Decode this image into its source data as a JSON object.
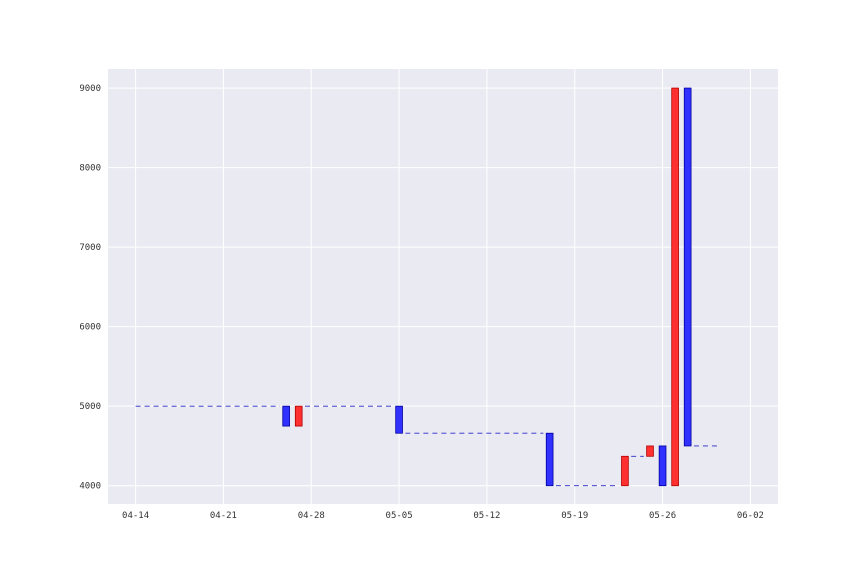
{
  "chart_data": {
    "type": "bar",
    "title": "",
    "xlabel": "",
    "ylabel": "",
    "ylim": [
      3770,
      9240
    ],
    "x_tick_labels": [
      "04-14",
      "04-21",
      "04-28",
      "05-05",
      "05-12",
      "05-19",
      "05-26",
      "06-02"
    ],
    "x_ticks_day_of_year": [
      104,
      111,
      118,
      125,
      132,
      139,
      146,
      153
    ],
    "xlim_day_of_year": [
      101.8,
      155.2
    ],
    "y_ticks": [
      4000,
      5000,
      6000,
      7000,
      8000,
      9000
    ],
    "grid": true,
    "colors": {
      "up": "#ff3030",
      "down": "#3030ff",
      "flat": "#2828c8",
      "background": "#eaeaf2"
    },
    "series": [
      {
        "color": "red",
        "values": [
          {
            "day": 117,
            "from": 4750,
            "to": 5000
          },
          {
            "day": 143,
            "from": 4000,
            "to": 4370
          },
          {
            "day": 145,
            "from": 4370,
            "to": 4500
          },
          {
            "day": 147,
            "from": 4000,
            "to": 9000
          }
        ]
      },
      {
        "color": "blue",
        "values": [
          {
            "day": 116,
            "from": 5000,
            "to": 4750
          },
          {
            "day": 125,
            "from": 5000,
            "to": 4660
          },
          {
            "day": 137,
            "from": 4660,
            "to": 4000
          },
          {
            "day": 146,
            "from": 4500,
            "to": 4000
          },
          {
            "day": 148,
            "from": 9000,
            "to": 4500
          }
        ]
      },
      {
        "color": "flat",
        "values": [
          {
            "from_day": 104,
            "to_day": 115.5,
            "value": 5000
          },
          {
            "from_day": 117.5,
            "to_day": 124.5,
            "value": 5000
          },
          {
            "from_day": 125.5,
            "to_day": 136.5,
            "value": 4660
          },
          {
            "from_day": 137.5,
            "to_day": 142.5,
            "value": 4000
          },
          {
            "from_day": 143.5,
            "to_day": 144.5,
            "value": 4370
          },
          {
            "from_day": 148.5,
            "to_day": 150.5,
            "value": 4500
          }
        ]
      }
    ]
  }
}
